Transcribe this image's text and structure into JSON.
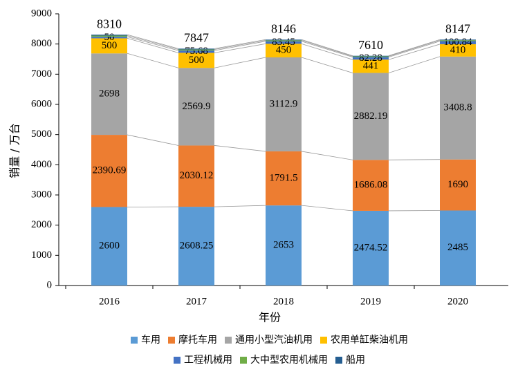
{
  "chart_data": {
    "type": "stacked-bar",
    "x_label": "年份",
    "y_label": "销量 / 万台",
    "categories": [
      "2016",
      "2017",
      "2018",
      "2019",
      "2020"
    ],
    "ylim": [
      0,
      9000
    ],
    "yticks": [
      0,
      1000,
      2000,
      3000,
      4000,
      5000,
      6000,
      7000,
      8000,
      9000
    ],
    "series": [
      {
        "name": "车用",
        "color": "#5b9bd5",
        "values": [
          2600,
          2608.25,
          2653,
          2474.52,
          2485
        ],
        "value_labels": [
          "2600",
          "2608.25",
          "2653",
          "2474.52",
          "2485"
        ]
      },
      {
        "name": "摩托车用",
        "color": "#ed7d31",
        "values": [
          2390.69,
          2030.12,
          1791.5,
          1686.08,
          1690
        ],
        "value_labels": [
          "2390.69",
          "2030.12",
          "1791.5",
          "1686.08",
          "1690"
        ]
      },
      {
        "name": "通用小型汽油机用",
        "color": "#a5a5a5",
        "values": [
          2698,
          2569.9,
          3112.9,
          2882.19,
          3408.8
        ],
        "value_labels": [
          "2698",
          "2569.9",
          "3112.9",
          "2882.19",
          "3408.8"
        ]
      },
      {
        "name": "农用单缸柴油机用",
        "color": "#ffc000",
        "values": [
          500,
          500,
          450,
          441,
          410
        ],
        "value_labels": [
          "500",
          "500",
          "450",
          "441",
          "410"
        ]
      },
      {
        "name": "工程机械用",
        "color": "#4472c4",
        "values": [
          50,
          75.68,
          83.45,
          82.28,
          100.84
        ],
        "value_labels": [
          "50",
          "75.68",
          "83.45",
          "82.28",
          "100.84"
        ]
      },
      {
        "name": "大中型农用机械用",
        "color": "#70ad47",
        "values": [
          40,
          35,
          30,
          25,
          30
        ]
      },
      {
        "name": "船用",
        "color": "#255e91",
        "values": [
          31,
          28,
          25,
          19,
          22
        ]
      }
    ],
    "total_labels": [
      8310,
      7847,
      8146,
      7610,
      8147
    ]
  }
}
